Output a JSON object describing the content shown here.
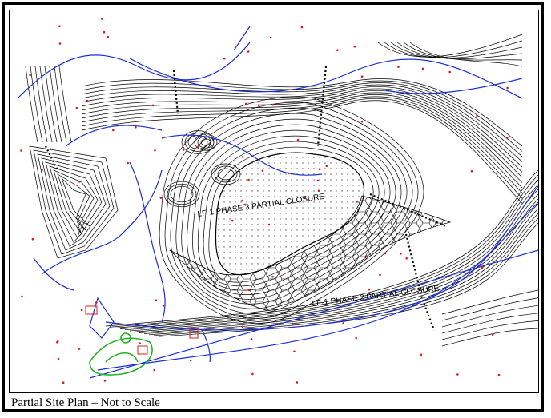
{
  "caption": "Partial Site Plan – Not to Scale",
  "labels": {
    "phase3": "LF-1 PHASE 3 PARTIAL CLOSURE",
    "phase2": "LF-1 PHASE 2 PARTIAL CLOSURE"
  },
  "colors": {
    "contour": "#000000",
    "road": "#1c2fd6",
    "vegetation": "#22b422",
    "marker": "#d61c1c"
  }
}
